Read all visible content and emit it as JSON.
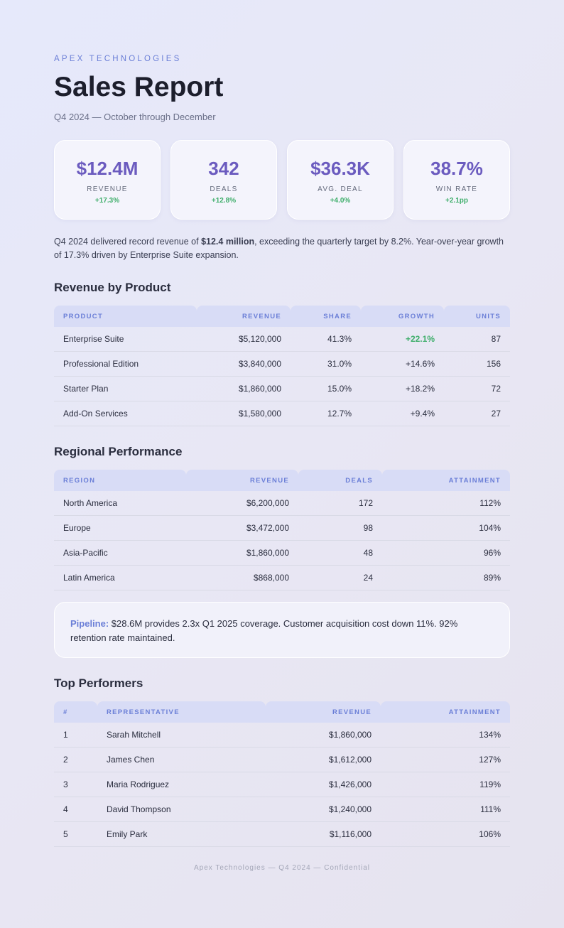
{
  "header": {
    "eyebrow": "APEX TECHNOLOGIES",
    "title": "Sales Report",
    "subtitle": "Q4 2024 — October through December"
  },
  "kpis": [
    {
      "value": "$12.4M",
      "label": "REVENUE",
      "change": "+17.3%"
    },
    {
      "value": "342",
      "label": "DEALS",
      "change": "+12.8%"
    },
    {
      "value": "$36.3K",
      "label": "AVG. DEAL",
      "change": "+4.0%"
    },
    {
      "value": "38.7%",
      "label": "WIN RATE",
      "change": "+2.1pp"
    }
  ],
  "summary": {
    "before": "Q4 2024 delivered record revenue of ",
    "bold": "$12.4 million",
    "after": ", exceeding the quarterly target by 8.2%. Year-over-year growth of 17.3% driven by Enterprise Suite expansion."
  },
  "product_section": {
    "heading": "Revenue by Product",
    "columns": [
      "PRODUCT",
      "REVENUE",
      "SHARE",
      "GROWTH",
      "UNITS"
    ],
    "rows": [
      [
        "Enterprise Suite",
        "$5,120,000",
        "41.3%",
        "+22.1%",
        "87"
      ],
      [
        "Professional Edition",
        "$3,840,000",
        "31.0%",
        "+14.6%",
        "156"
      ],
      [
        "Starter Plan",
        "$1,860,000",
        "15.0%",
        "+18.2%",
        "72"
      ],
      [
        "Add-On Services",
        "$1,580,000",
        "12.7%",
        "+9.4%",
        "27"
      ]
    ]
  },
  "regional_section": {
    "heading": "Regional Performance",
    "columns": [
      "REGION",
      "REVENUE",
      "DEALS",
      "ATTAINMENT"
    ],
    "rows": [
      [
        "North America",
        "$6,200,000",
        "172",
        "112%"
      ],
      [
        "Europe",
        "$3,472,000",
        "98",
        "104%"
      ],
      [
        "Asia-Pacific",
        "$1,860,000",
        "48",
        "96%"
      ],
      [
        "Latin America",
        "$868,000",
        "24",
        "89%"
      ]
    ]
  },
  "callout": {
    "label": "Pipeline:",
    "text": " $28.6M provides 2.3x Q1 2025 coverage. Customer acquisition cost down 11%. 92% retention rate maintained."
  },
  "performers_section": {
    "heading": "Top Performers",
    "columns": [
      "#",
      "REPRESENTATIVE",
      "REVENUE",
      "ATTAINMENT"
    ],
    "rows": [
      [
        "1",
        "Sarah Mitchell",
        "$1,860,000",
        "134%"
      ],
      [
        "2",
        "James Chen",
        "$1,612,000",
        "127%"
      ],
      [
        "3",
        "Maria Rodriguez",
        "$1,426,000",
        "119%"
      ],
      [
        "4",
        "David Thompson",
        "$1,240,000",
        "111%"
      ],
      [
        "5",
        "Emily Park",
        "$1,116,000",
        "106%"
      ]
    ]
  },
  "footer": "Apex Technologies — Q4 2024 — Confidential"
}
